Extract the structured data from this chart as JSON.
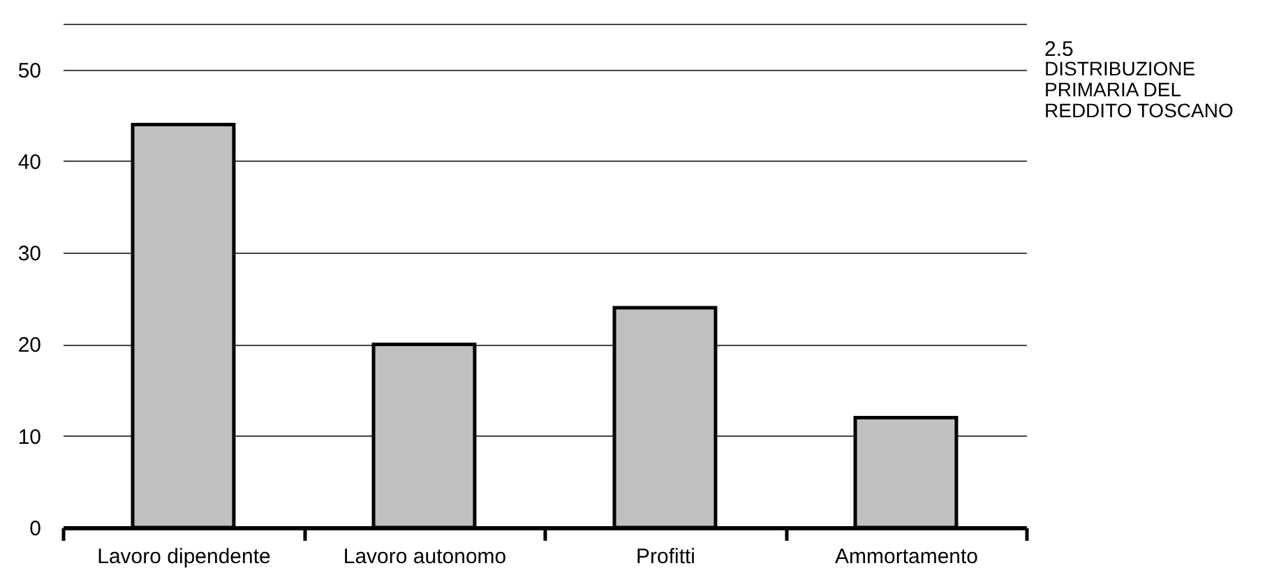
{
  "chart_data": {
    "type": "bar",
    "title": "2.5",
    "subtitle": "DISTRIBUZIONE PRIMARIA DEL REDDITO TOSCANO",
    "categories": [
      "Lavoro dipendente",
      "Lavoro autonomo",
      "Profitti",
      "Ammortamento"
    ],
    "values": [
      44,
      20,
      24,
      12
    ],
    "color": "#c0c0c0",
    "ylim": [
      0,
      55
    ],
    "yticks": [
      0,
      10,
      20,
      30,
      40,
      50,
      {
        "value": 55,
        "label": null
      }
    ],
    "grid": "y"
  }
}
